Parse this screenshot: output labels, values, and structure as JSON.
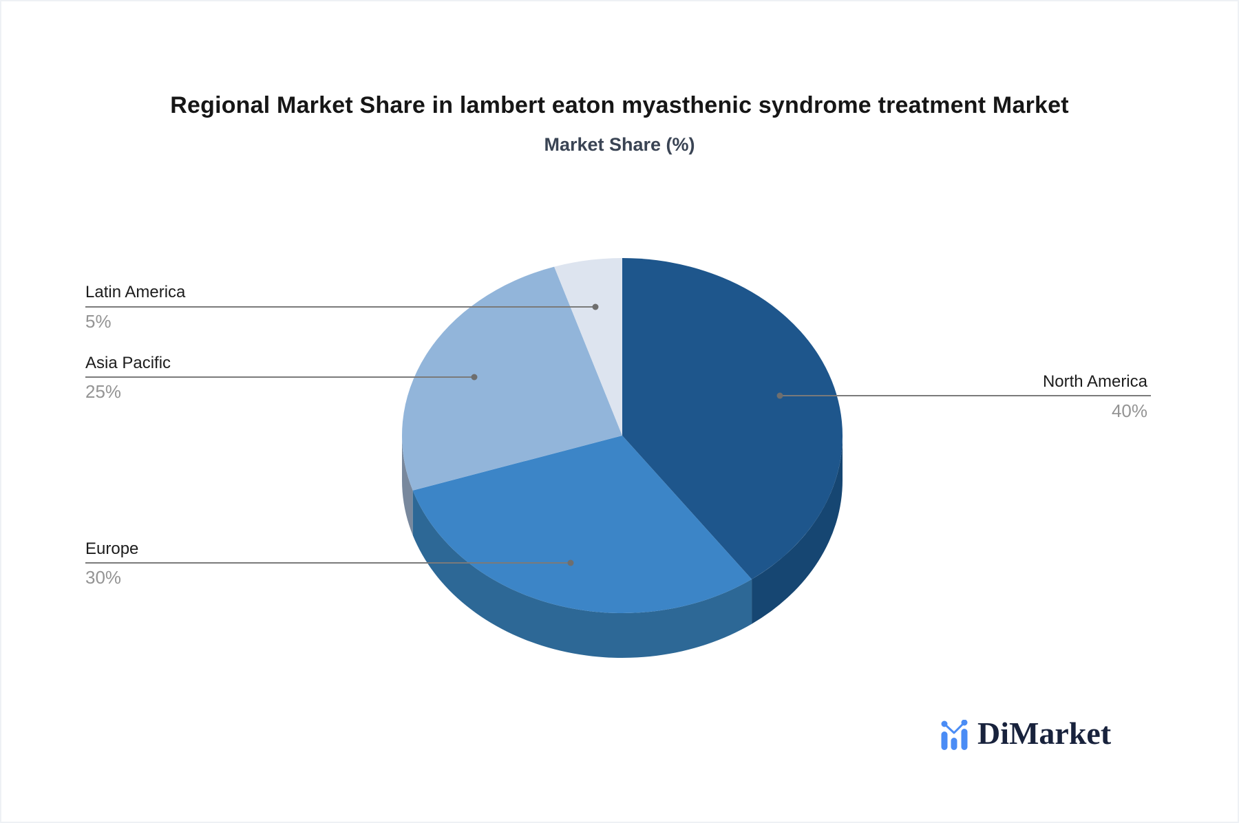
{
  "title": "Regional Market Share in lambert eaton myasthenic syndrome treatment Market",
  "subtitle": "Market Share (%)",
  "brand": {
    "name": "DiMarket",
    "icon": "bar-chart-logo-icon",
    "icon_color": "#4a8cf5",
    "text_color": "#18223c"
  },
  "chart_data": {
    "type": "pie",
    "title": "Regional Market Share in lambert eaton myasthenic syndrome treatment Market",
    "subtitle": "Market Share (%)",
    "unit": "%",
    "effect": "3d",
    "start_angle_deg": 0,
    "direction": "clockwise",
    "slices": [
      {
        "label": "North America",
        "value": 40,
        "display": "40%",
        "color": "#1e568c",
        "side_color": "#164672",
        "label_side": "right"
      },
      {
        "label": "Europe",
        "value": 30,
        "display": "30%",
        "color": "#3c85c7",
        "side_color": "#2d6896",
        "label_side": "left"
      },
      {
        "label": "Asia Pacific",
        "value": 25,
        "display": "25%",
        "color": "#92b5da",
        "side_color": "#78889d",
        "label_side": "left"
      },
      {
        "label": "Latin America",
        "value": 5,
        "display": "5%",
        "color": "#dde4ef",
        "side_color": "#aab6c8",
        "label_side": "left"
      }
    ],
    "label_color": "#1c1c1c",
    "value_color": "#949494",
    "leader_line_color": "#7a7a7a",
    "leader_dot_color": "#6e6e6e",
    "legend": "none",
    "grid": "off"
  }
}
